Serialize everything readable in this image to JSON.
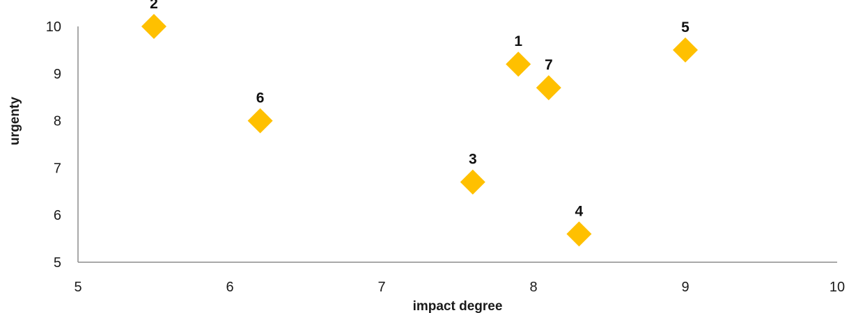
{
  "chart_data": {
    "type": "scatter",
    "title": "",
    "xlabel": "impact degree",
    "ylabel": "urgenty",
    "xlim": [
      5,
      10
    ],
    "ylim": [
      5,
      10
    ],
    "x_ticks": [
      5,
      6,
      7,
      8,
      9,
      10
    ],
    "y_ticks": [
      5,
      6,
      7,
      8,
      9,
      10
    ],
    "grid": false,
    "legend": "none",
    "marker": "diamond",
    "marker_color": "#FFC000",
    "points": [
      {
        "label": "1",
        "x": 7.9,
        "y": 9.2
      },
      {
        "label": "2",
        "x": 5.5,
        "y": 10.0
      },
      {
        "label": "3",
        "x": 7.6,
        "y": 6.7
      },
      {
        "label": "4",
        "x": 8.3,
        "y": 5.6
      },
      {
        "label": "5",
        "x": 9.0,
        "y": 9.5
      },
      {
        "label": "6",
        "x": 6.2,
        "y": 8.0
      },
      {
        "label": "7",
        "x": 8.1,
        "y": 8.7
      }
    ]
  }
}
